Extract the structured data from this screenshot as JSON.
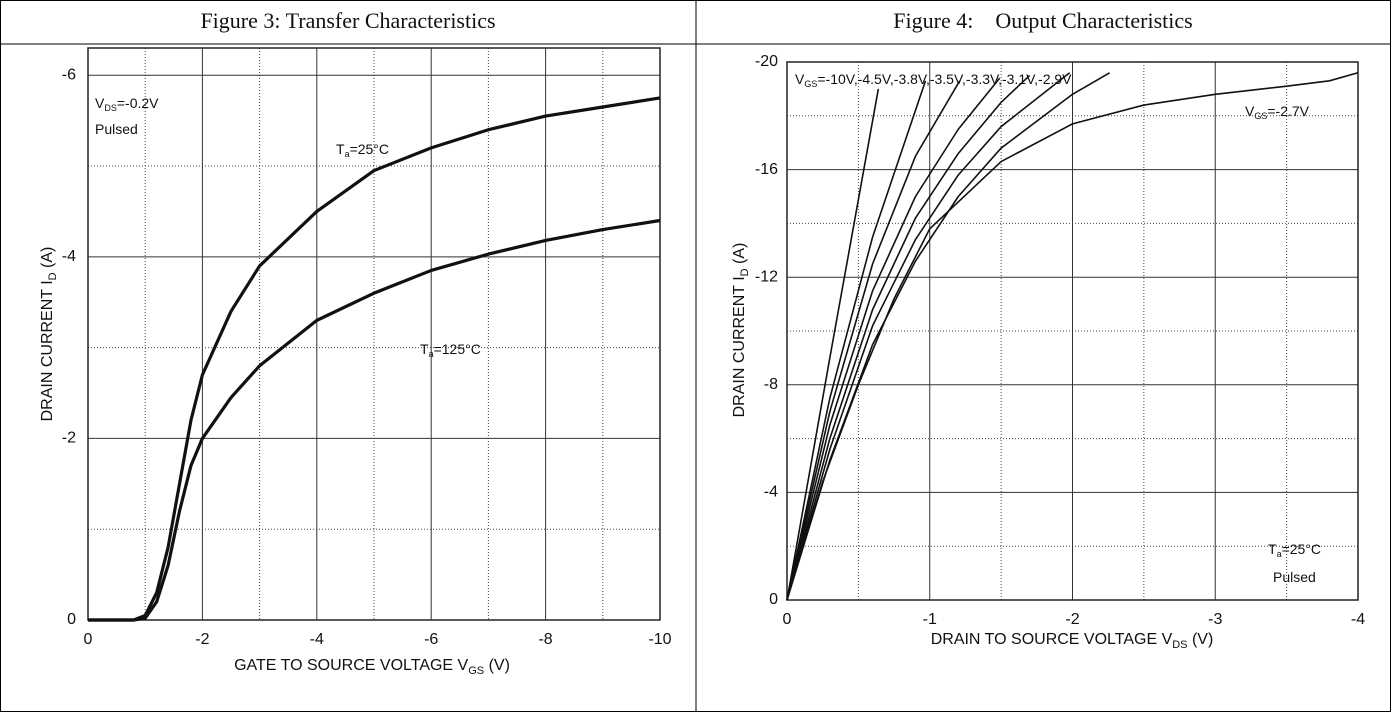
{
  "header": {
    "cells": [
      "Figure 3: Transfer Characteristics",
      "Figure 4:    Output Characteristics"
    ]
  },
  "chart_data": [
    {
      "type": "line",
      "xlabel": {
        "text": "GATE TO SOURCE VOLTAGE V",
        "sub": "GS",
        "rest": " (V)"
      },
      "ylabel": {
        "text": "DRAIN CURRENT I",
        "sub": "D",
        "rest": " (A)"
      },
      "xlim": [
        0,
        -10
      ],
      "ylim": [
        0,
        -6.3
      ],
      "xticks": [
        0,
        -2,
        -4,
        -6,
        -8,
        -10
      ],
      "yticks": [
        0,
        -2,
        -4,
        -6
      ],
      "x_minor_ticks": [
        -1,
        -3,
        -5,
        -7,
        -9
      ],
      "y_minor_ticks": [
        -1,
        -3,
        -5
      ],
      "grid": true,
      "color": "#111",
      "annotations": [
        {
          "text": "V",
          "sub": "DS",
          "rest": "=-0.2V"
        },
        {
          "text": "Pulsed"
        },
        {
          "text": "T",
          "sub": "a",
          "rest": "=25°C"
        },
        {
          "text": "T",
          "sub": "a",
          "rest": "=125°C"
        }
      ],
      "series": [
        {
          "x": [
            0,
            -0.8,
            -1,
            -1.2,
            -1.4,
            -1.6,
            -1.8,
            -2,
            -2.5,
            -3,
            -4,
            -5,
            -6,
            -7,
            -8,
            -9,
            -10
          ],
          "values": [
            0,
            0,
            -0.05,
            -0.3,
            -0.8,
            -1.5,
            -2.2,
            -2.7,
            -3.4,
            -3.9,
            -4.5,
            -4.95,
            -5.2,
            -5.4,
            -5.55,
            -5.65,
            -5.75
          ]
        },
        {
          "x": [
            0,
            -0.8,
            -1,
            -1.2,
            -1.4,
            -1.6,
            -1.8,
            -2,
            -2.5,
            -3,
            -4,
            -5,
            -6,
            -7,
            -8,
            -9,
            -10
          ],
          "values": [
            0,
            0,
            -0.02,
            -0.2,
            -0.6,
            -1.2,
            -1.7,
            -2.0,
            -2.45,
            -2.8,
            -3.3,
            -3.6,
            -3.85,
            -4.03,
            -4.18,
            -4.3,
            -4.4
          ]
        }
      ]
    },
    {
      "type": "line",
      "xlabel": {
        "text": "DRAIN TO SOURCE VOLTAGE V",
        "sub": "DS",
        "rest": " (V)"
      },
      "ylabel": {
        "text": "DRAIN CURRENT I",
        "sub": "D",
        "rest": " (A)"
      },
      "xlim": [
        0,
        -4
      ],
      "ylim": [
        0,
        -20
      ],
      "xticks": [
        0,
        -1,
        -2,
        -3,
        -4
      ],
      "yticks": [
        0,
        -4,
        -8,
        -12,
        -16,
        -20
      ],
      "x_minor_ticks": [
        -0.5,
        -1.5,
        -2.5,
        -3.5
      ],
      "y_minor_ticks": [
        -2,
        -6,
        -10,
        -14,
        -18
      ],
      "grid": true,
      "color": "#111",
      "annotations": [
        {
          "text": "V",
          "sub": "GS",
          "rest": "=-10V,-4.5V,-3.8V,-3.5V,-3.3V,-3.1V,-2.9V"
        },
        {
          "text": "V",
          "sub": "GS",
          "rest": "=-2.7V"
        },
        {
          "text": "T",
          "sub": "a",
          "rest": "=25°C"
        },
        {
          "text": "Pulsed"
        }
      ],
      "series": [
        {
          "x": [
            0,
            -0.3,
            -0.64
          ],
          "values": [
            0,
            -9,
            -19
          ]
        },
        {
          "x": [
            0,
            -0.3,
            -0.6,
            -0.97
          ],
          "values": [
            0,
            -7.5,
            -13.5,
            -19.3
          ]
        },
        {
          "x": [
            0,
            -0.3,
            -0.6,
            -0.9,
            -1.21
          ],
          "values": [
            0,
            -7,
            -12.5,
            -16.5,
            -19.3
          ]
        },
        {
          "x": [
            0,
            -0.3,
            -0.6,
            -0.9,
            -1.2,
            -1.49
          ],
          "values": [
            0,
            -6.5,
            -11.5,
            -15,
            -17.5,
            -19.4
          ]
        },
        {
          "x": [
            0,
            -0.3,
            -0.6,
            -0.9,
            -1.2,
            -1.5,
            -1.7
          ],
          "values": [
            0,
            -6,
            -10.8,
            -14.2,
            -16.6,
            -18.5,
            -19.5
          ]
        },
        {
          "x": [
            0,
            -0.3,
            -0.6,
            -0.9,
            -1.2,
            -1.5,
            -1.98
          ],
          "values": [
            0,
            -5.6,
            -10.2,
            -13.4,
            -15.8,
            -17.6,
            -19.6
          ]
        },
        {
          "x": [
            0,
            -0.3,
            -0.6,
            -0.9,
            -1.2,
            -1.5,
            -2,
            -2.26
          ],
          "values": [
            0,
            -5.2,
            -9.5,
            -12.6,
            -15,
            -16.8,
            -18.8,
            -19.6
          ]
        },
        {
          "x": [
            0,
            -0.25,
            -0.5,
            -0.75,
            -1,
            -1.5,
            -2,
            -2.5,
            -3,
            -3.5,
            -3.8,
            -4
          ],
          "values": [
            0,
            -4.4,
            -8,
            -11.2,
            -13.8,
            -16.3,
            -17.7,
            -18.4,
            -18.8,
            -19.1,
            -19.3,
            -19.6
          ]
        }
      ]
    }
  ]
}
